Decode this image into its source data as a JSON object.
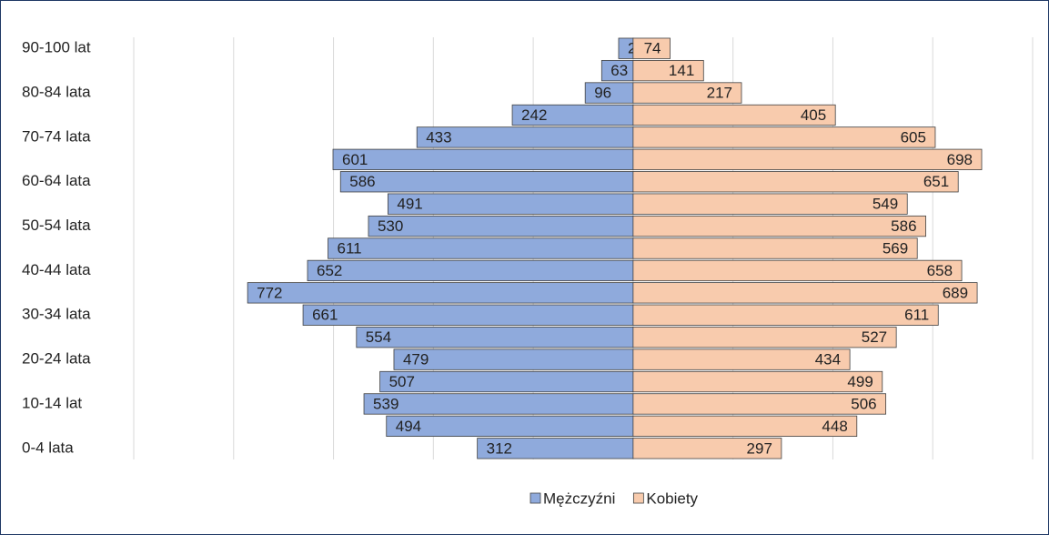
{
  "chart_data": {
    "type": "pyramid",
    "categories": [
      "0-4 lata",
      null,
      "10-14 lat",
      null,
      "20-24 lata",
      null,
      "30-34 lata",
      null,
      "40-44 lata",
      null,
      "50-54 lata",
      null,
      "60-64 lata",
      null,
      "70-74 lata",
      null,
      "80-84 lata",
      null,
      "90-100 lat"
    ],
    "series": [
      {
        "name": "Mężczyźni",
        "color": "#8faadc",
        "side": "left",
        "values": [
          312,
          494,
          539,
          507,
          479,
          554,
          661,
          772,
          652,
          611,
          530,
          491,
          586,
          601,
          433,
          242,
          96,
          63,
          29
        ]
      },
      {
        "name": "Kobiety",
        "color": "#f8cbad",
        "side": "right",
        "values": [
          297,
          448,
          506,
          499,
          434,
          527,
          611,
          689,
          658,
          569,
          586,
          549,
          651,
          698,
          605,
          405,
          217,
          141,
          74
        ]
      }
    ],
    "xlim": [
      -1000,
      800
    ],
    "xticks": [
      -1000,
      -800,
      -600,
      -400,
      -200,
      0,
      200,
      400,
      600,
      800
    ],
    "grid": true,
    "legend": "bottom"
  }
}
